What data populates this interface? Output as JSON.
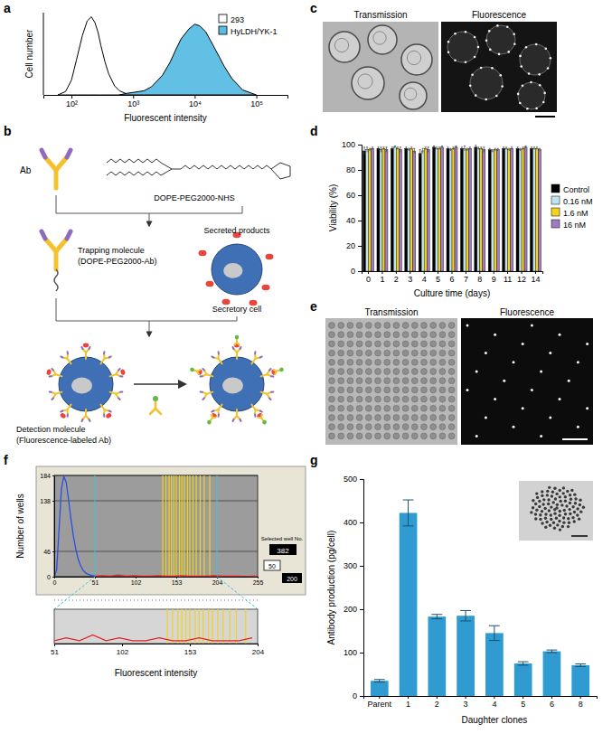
{
  "chart_data": [
    {
      "panel": "a",
      "type": "area",
      "xlabel": "Fluorescent intensity",
      "ylabel": "Cell number",
      "log": "x",
      "xlim": [
        35,
        320000
      ],
      "xticks": [
        {
          "value": 100,
          "label": "10²"
        },
        {
          "value": 1000,
          "label": "10³"
        },
        {
          "value": 10000,
          "label": "10⁴"
        },
        {
          "value": 100000,
          "label": "10⁵"
        }
      ],
      "ylim": [
        0,
        100
      ],
      "tick_labels": "x",
      "legend": "upper right",
      "series": [
        {
          "name": "293",
          "color": "#ffffff",
          "x": [
            60,
            80,
            100,
            120,
            150,
            180,
            210,
            240,
            270,
            300,
            350,
            400,
            500,
            600,
            800,
            1000
          ],
          "values": [
            0,
            4,
            18,
            42,
            72,
            90,
            95,
            88,
            76,
            60,
            40,
            26,
            11,
            5,
            1,
            0
          ]
        },
        {
          "name": "HyLDH/YK-1",
          "color": "#5bbde4",
          "x": [
            600,
            800,
            1000,
            1500,
            2000,
            3000,
            4000,
            5000,
            6000,
            8000,
            10000,
            12000,
            15000,
            20000,
            30000,
            40000,
            60000,
            100000
          ],
          "values": [
            0,
            2,
            3,
            5,
            10,
            24,
            40,
            56,
            68,
            80,
            86,
            84,
            77,
            60,
            35,
            20,
            6,
            0
          ]
        }
      ]
    },
    {
      "panel": "d",
      "type": "bar",
      "xlabel": "Culture time (days)",
      "ylabel": "Viability (%)",
      "legend": "right",
      "categories": [
        "0",
        "1",
        "2",
        "3",
        "4",
        "5",
        "6",
        "7",
        "8",
        "9",
        "11",
        "12",
        "14"
      ],
      "ylim": [
        0,
        100
      ],
      "yticks": [
        0,
        20,
        40,
        60,
        80,
        100
      ],
      "series": [
        {
          "name": "Control",
          "color": "#000000",
          "values": [
            95,
            97,
            97,
            97,
            93,
            98,
            97,
            97,
            98,
            96,
            97,
            97,
            97
          ],
          "errors": [
            3,
            1,
            1,
            1,
            3,
            1,
            1,
            1,
            2,
            1,
            1,
            1,
            1
          ]
        },
        {
          "name": "0.16 nM",
          "color": "#bfe6ef",
          "values": [
            96,
            96,
            98,
            96,
            95,
            97,
            96,
            97,
            97,
            95,
            97,
            96,
            97
          ],
          "errors": [
            2,
            2,
            1,
            1,
            2,
            1,
            1,
            2,
            1,
            1,
            1,
            1,
            1
          ]
        },
        {
          "name": "1.6 nM",
          "color": "#f5d21f",
          "values": [
            96,
            97,
            97,
            97,
            97,
            97,
            97,
            96,
            97,
            96,
            96,
            97,
            97
          ],
          "errors": [
            1,
            1,
            1,
            1,
            1,
            1,
            1,
            1,
            1,
            1,
            1,
            1,
            1
          ]
        },
        {
          "name": "16 nM",
          "color": "#a07cc5",
          "values": [
            97,
            96,
            96,
            95,
            96,
            98,
            98,
            97,
            96,
            96,
            97,
            98,
            96
          ],
          "errors": [
            1,
            2,
            2,
            2,
            2,
            1,
            1,
            1,
            2,
            1,
            1,
            1,
            1
          ]
        }
      ]
    },
    {
      "panel": "f",
      "type": "line",
      "ylabel": "Number of wells",
      "xlim": [
        0,
        255
      ],
      "xticks": [
        0,
        51,
        102,
        153,
        204,
        255
      ],
      "ylim": [
        0,
        184
      ],
      "yticks": [
        0,
        46,
        138,
        184
      ],
      "grid": true,
      "series": [
        {
          "color": "#2a4fe0",
          "x": [
            0,
            3,
            6,
            9,
            12,
            15,
            18,
            21,
            24,
            27,
            30,
            33,
            36,
            40,
            45,
            51
          ],
          "values": [
            0,
            12,
            85,
            160,
            182,
            172,
            140,
            104,
            74,
            50,
            32,
            20,
            12,
            6,
            3,
            1
          ]
        },
        {
          "color": "#e02424",
          "x": [
            51,
            60,
            70,
            80,
            90,
            100,
            110,
            120,
            130,
            140,
            150,
            160,
            170,
            180,
            190,
            200,
            210,
            220,
            230,
            240,
            250,
            255
          ],
          "values": [
            1,
            2,
            1,
            3,
            1,
            2,
            1,
            1,
            2,
            1,
            1,
            2,
            1,
            1,
            1,
            2,
            1,
            1,
            1,
            0,
            1,
            0
          ]
        }
      ],
      "selected_x": [
        136,
        140,
        144,
        147,
        150,
        153,
        157,
        160,
        163,
        167,
        170,
        174,
        178,
        183,
        188,
        195
      ],
      "annotations": [
        "Selected well No.",
        "382",
        "50",
        "200"
      ]
    },
    {
      "type": "line",
      "xlabel": "Fluorescent intensity",
      "xlim": [
        51,
        204
      ],
      "xticks": [
        51,
        102,
        153,
        204
      ],
      "ylim": [
        0,
        12
      ],
      "tick_labels": "x",
      "series": [
        {
          "color": "#e02424",
          "x": [
            51,
            60,
            70,
            80,
            90,
            100,
            110,
            120,
            130,
            140,
            150,
            160,
            170,
            180,
            190,
            200
          ],
          "values": [
            1,
            2,
            1,
            3,
            1,
            2,
            1,
            1,
            2,
            1,
            1,
            2,
            1,
            1,
            1,
            2
          ]
        }
      ],
      "selected_x": [
        136,
        140,
        144,
        147,
        150,
        153,
        157,
        160,
        163,
        167,
        170,
        174,
        178,
        183,
        188,
        195
      ]
    },
    {
      "panel": "g",
      "type": "bar",
      "ylabel": "Antibody production (pg/cell)",
      "xlabel": "Daughter clones",
      "categories": [
        "Parent",
        "1",
        "2",
        "3",
        "4",
        "5",
        "6",
        "8"
      ],
      "values": [
        35,
        422,
        183,
        185,
        145,
        75,
        103,
        71
      ],
      "errors": [
        3,
        30,
        5,
        12,
        17,
        4,
        3,
        3
      ],
      "color": "#2f9bd1",
      "ylim": [
        0,
        500
      ],
      "yticks": [
        0,
        100,
        200,
        300,
        400,
        500
      ]
    }
  ],
  "diagram": {
    "panel": "b",
    "ab": "Ab",
    "linker": "DOPE-PEG2000-NHS",
    "trapping": "Trapping molecule",
    "trapping_name": "(DOPE-PEG2000-Ab)",
    "secreted": "Secreted products",
    "cell": "Secretory cell",
    "detection": "Detection molecule",
    "detection_name": "(Fluorescence-labeled Ab)"
  },
  "micrographs": [
    {
      "panel": "c",
      "labels": [
        "Transmission",
        "Fluorescence"
      ]
    },
    {
      "panel": "e",
      "labels": [
        "Transmission",
        "Fluorescence"
      ]
    }
  ]
}
